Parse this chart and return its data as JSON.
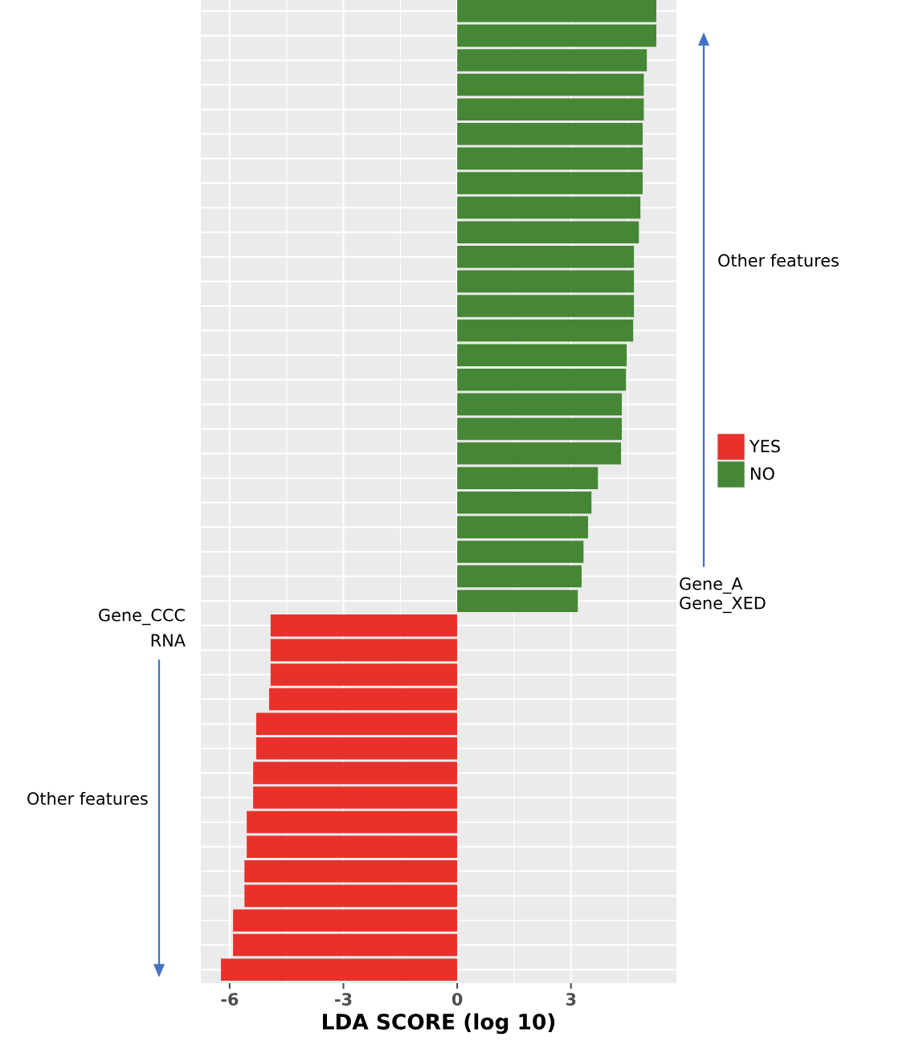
{
  "chart_data": {
    "type": "bar",
    "orientation": "horizontal",
    "xlabel": "LDA SCORE (log 10)",
    "categories": [
      null,
      null,
      null,
      null,
      null,
      null,
      null,
      null,
      null,
      null,
      null,
      null,
      null,
      null,
      null,
      null,
      null,
      null,
      null,
      null,
      null,
      null,
      null,
      null,
      null,
      null,
      null,
      null,
      null,
      null,
      null,
      null,
      null,
      null,
      null,
      null,
      null,
      null,
      null,
      null
    ],
    "series": [
      {
        "name": "YES",
        "color": "#e8312a",
        "values": [
          null,
          null,
          null,
          null,
          null,
          null,
          null,
          null,
          null,
          null,
          null,
          null,
          null,
          null,
          null,
          null,
          null,
          null,
          null,
          null,
          null,
          null,
          null,
          null,
          null,
          -4.92,
          -4.92,
          -4.92,
          -4.96,
          -5.3,
          -5.3,
          -5.38,
          -5.38,
          -5.55,
          -5.55,
          -5.61,
          -5.61,
          -5.91,
          -5.91,
          -6.23
        ]
      },
      {
        "name": "NO",
        "color": "#468735",
        "values": [
          5.25,
          5.25,
          5.0,
          4.92,
          4.92,
          4.89,
          4.89,
          4.89,
          4.83,
          4.79,
          4.66,
          4.66,
          4.66,
          4.64,
          4.47,
          4.45,
          4.34,
          4.34,
          4.32,
          3.71,
          3.54,
          3.45,
          3.33,
          3.28,
          3.18,
          null,
          null,
          null,
          null,
          null,
          null,
          null,
          null,
          null,
          null,
          null,
          null,
          null,
          null,
          null
        ]
      }
    ],
    "xlim": [
      -6.76,
      5.78
    ],
    "xticks": [
      -6,
      -3,
      0,
      3
    ],
    "grid": true,
    "legend": "right",
    "tick_labels": "x",
    "annotations": [
      "Other features",
      "Gene_A",
      "Gene_XED",
      "Gene_CCC",
      "RNA",
      "Other features"
    ]
  }
}
